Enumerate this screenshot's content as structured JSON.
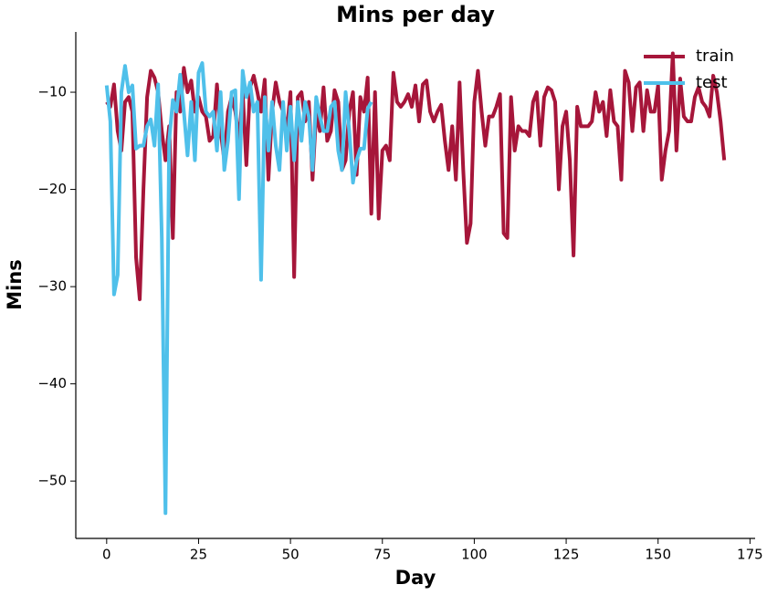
{
  "chart_data": {
    "type": "line",
    "title": "Mins per day",
    "xlabel": "Day",
    "ylabel": "Mins",
    "xlim": [
      -8.4,
      176.4
    ],
    "ylim": [
      -55.9,
      -3.8
    ],
    "xticks": [
      0,
      25,
      50,
      75,
      100,
      125,
      150,
      175
    ],
    "yticks": [
      {
        "value": -50,
        "label": "−50"
      },
      {
        "value": -40,
        "label": "−40"
      },
      {
        "value": -30,
        "label": "−30"
      },
      {
        "value": -20,
        "label": "−20"
      },
      {
        "value": -10,
        "label": "−10"
      }
    ],
    "legend": "upper right",
    "series": [
      {
        "name": "train",
        "color": "#a6163a",
        "x": [
          0,
          1,
          2,
          3,
          4,
          5,
          6,
          7,
          8,
          9,
          10,
          11,
          12,
          13,
          14,
          15,
          16,
          17,
          18,
          19,
          20,
          21,
          22,
          23,
          24,
          25,
          26,
          27,
          28,
          29,
          30,
          31,
          32,
          33,
          34,
          35,
          36,
          37,
          38,
          39,
          40,
          41,
          42,
          43,
          44,
          45,
          46,
          47,
          48,
          49,
          50,
          51,
          52,
          53,
          54,
          55,
          56,
          57,
          58,
          59,
          60,
          61,
          62,
          63,
          64,
          65,
          66,
          67,
          68,
          69,
          70,
          71,
          72,
          73,
          74,
          75,
          76,
          77,
          78,
          79,
          80,
          81,
          82,
          83,
          84,
          85,
          86,
          87,
          88,
          89,
          90,
          91,
          92,
          93,
          94,
          95,
          96,
          97,
          98,
          99,
          100,
          101,
          102,
          103,
          104,
          105,
          106,
          107,
          108,
          109,
          110,
          111,
          112,
          113,
          114,
          115,
          116,
          117,
          118,
          119,
          120,
          121,
          122,
          123,
          124,
          125,
          126,
          127,
          128,
          129,
          130,
          131,
          132,
          133,
          134,
          135,
          136,
          137,
          138,
          139,
          140,
          141,
          142,
          143,
          144,
          145,
          146,
          147,
          148,
          149,
          150,
          151,
          152,
          153,
          154,
          155,
          156,
          157,
          158,
          159,
          160,
          161,
          162,
          163,
          164,
          165,
          166,
          167,
          168
        ],
        "values": [
          -11,
          -11.5,
          -9.2,
          -14,
          -16,
          -11,
          -10.5,
          -12,
          -27,
          -31.3,
          -20,
          -10.5,
          -7.8,
          -8.5,
          -10,
          -14,
          -17,
          -13.5,
          -25,
          -10,
          -12,
          -7.5,
          -10,
          -8.8,
          -12,
          -10.5,
          -12,
          -12.5,
          -15,
          -14.5,
          -9.2,
          -14,
          -17,
          -12,
          -10.5,
          -12,
          -15,
          -10,
          -17.5,
          -9.5,
          -8.3,
          -10,
          -12,
          -8.7,
          -19,
          -12,
          -9,
          -11,
          -12,
          -14,
          -10,
          -29,
          -10.5,
          -10,
          -13,
          -11,
          -19,
          -12,
          -14,
          -9.5,
          -15,
          -14,
          -9.8,
          -11,
          -18,
          -17,
          -12,
          -10,
          -18.5,
          -10.5,
          -12,
          -8.5,
          -22.5,
          -10,
          -23,
          -16,
          -15.5,
          -17,
          -8,
          -11,
          -11.5,
          -11,
          -10.2,
          -11.5,
          -9.3,
          -13,
          -9.2,
          -8.8,
          -12,
          -13,
          -12,
          -11.3,
          -15,
          -18,
          -13.5,
          -19,
          -9,
          -18,
          -25.5,
          -23.5,
          -11,
          -7.8,
          -12,
          -15.5,
          -12.5,
          -12.5,
          -11.5,
          -10.2,
          -24.5,
          -25,
          -10.5,
          -16,
          -13.5,
          -14,
          -14,
          -14.5,
          -11,
          -10,
          -15.5,
          -10.5,
          -9.5,
          -9.8,
          -11,
          -20,
          -13.5,
          -12,
          -17,
          -26.8,
          -11.5,
          -13.5,
          -13.5,
          -13.5,
          -13,
          -10,
          -12,
          -11,
          -14.5,
          -9.8,
          -13,
          -13.5,
          -19,
          -7.8,
          -9,
          -14,
          -9.5,
          -9,
          -14,
          -9.8,
          -12,
          -12,
          -9.3,
          -19,
          -16,
          -14,
          -6,
          -16,
          -8.6,
          -12.5,
          -13,
          -13,
          -10.5,
          -9.5,
          -11,
          -11.5,
          -12.5,
          -8.3,
          -10,
          -13,
          -17
        ]
      },
      {
        "name": "test",
        "color": "#4fc0ea",
        "x": [
          0,
          1,
          2,
          3,
          4,
          5,
          6,
          7,
          8,
          9,
          10,
          11,
          12,
          13,
          14,
          15,
          16,
          17,
          18,
          19,
          20,
          21,
          22,
          23,
          24,
          25,
          26,
          27,
          28,
          29,
          30,
          31,
          32,
          33,
          34,
          35,
          36,
          37,
          38,
          39,
          40,
          41,
          42,
          43,
          44,
          45,
          46,
          47,
          48,
          49,
          50,
          51,
          52,
          53,
          54,
          55,
          56,
          57,
          58,
          59,
          60,
          61,
          62,
          63,
          64,
          65,
          66,
          67,
          68,
          69,
          70,
          71,
          72
        ],
        "values": [
          -9.3,
          -13,
          -30.8,
          -28.8,
          -10,
          -7.3,
          -10,
          -9.3,
          -15.8,
          -15.5,
          -15.5,
          -13.5,
          -12.8,
          -15.5,
          -9.2,
          -25,
          -53.3,
          -15,
          -10.8,
          -12,
          -8.2,
          -12,
          -16.5,
          -11,
          -17,
          -8,
          -7,
          -12,
          -12.5,
          -12,
          -16,
          -10,
          -18,
          -15,
          -10,
          -9.8,
          -21,
          -7.8,
          -10.5,
          -9,
          -12,
          -11,
          -29.3,
          -10.5,
          -16,
          -11,
          -15.5,
          -18,
          -11,
          -16,
          -11.5,
          -17,
          -11,
          -15,
          -11,
          -12.5,
          -18,
          -10.5,
          -12.5,
          -14,
          -14,
          -11.5,
          -11,
          -16,
          -18,
          -10,
          -14,
          -19.3,
          -17,
          -15.8,
          -15.8,
          -11.7,
          -11
        ]
      }
    ]
  }
}
